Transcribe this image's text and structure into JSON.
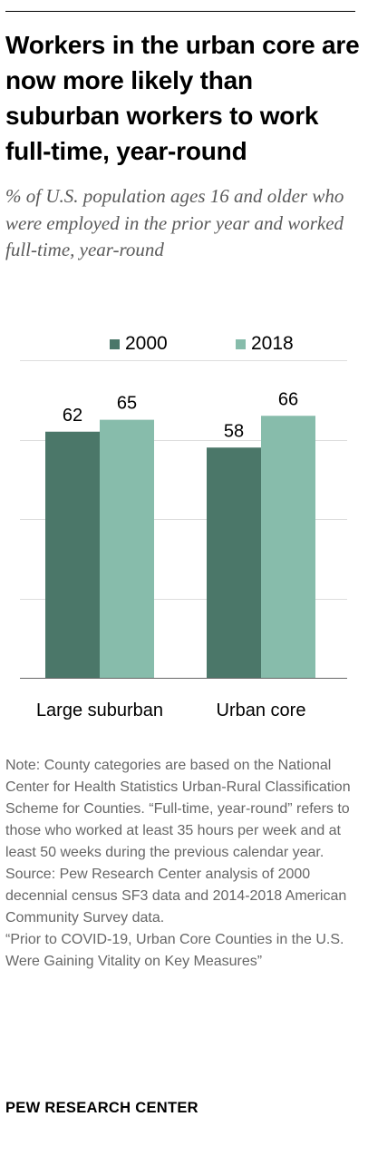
{
  "header": {
    "title": "Workers in the urban core are now more likely than suburban workers to work full-time, year-round",
    "subtitle": "% of U.S. population ages 16 and older who were employed in the prior year and worked full-time, year-round"
  },
  "colors": {
    "series_2000": "#4b7769",
    "series_2018": "#87bcab",
    "gridline": "#dddddd",
    "baseline": "#666666"
  },
  "chart_data": {
    "type": "bar",
    "title": "Workers in the urban core are now more likely than suburban workers to work full-time, year-round",
    "subtitle": "% of U.S. population ages 16 and older who were employed in the prior year and worked full-time, year-round",
    "xlabel": "",
    "ylabel": "",
    "categories": [
      "Large suburban",
      "Urban core"
    ],
    "series": [
      {
        "name": "2000",
        "values": [
          62,
          58
        ]
      },
      {
        "name": "2018",
        "values": [
          65,
          66
        ]
      }
    ],
    "ylim": [
      0,
      80
    ],
    "grid": true,
    "legend_position": "top",
    "data_labels": true
  },
  "notes": {
    "note": "Note: County categories are based on the National Center for Health Statistics Urban-Rural Classification Scheme for Counties. “Full-time, year-round” refers to those who worked at least 35 hours per week and at least 50 weeks during the previous calendar year.",
    "source": "Source: Pew Research Center analysis of 2000 decennial census SF3 data and 2014-2018 American Community Survey data.",
    "report": "“Prior to COVID-19, Urban Core Counties in the U.S. Were Gaining Vitality on Key Measures”"
  },
  "footer": {
    "org": "PEW RESEARCH CENTER"
  }
}
